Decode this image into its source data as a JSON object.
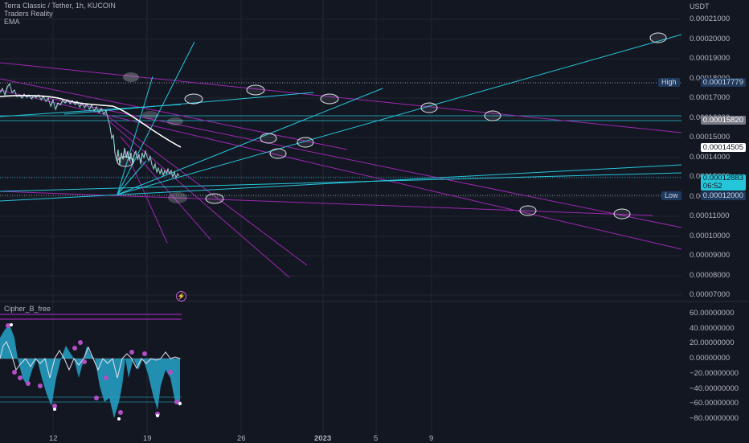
{
  "header": {
    "symbol": "Terra Classic / Tether, 1h, KUCOIN",
    "indicator_1": "Traders Reality",
    "indicator_2": "EMA",
    "unit": "USDT"
  },
  "oscillator": {
    "title": "Cipher_B_free"
  },
  "price_axis": {
    "labels": [
      "0.00021000",
      "0.00020000",
      "0.00019000",
      "0.00018000",
      "0.00017000",
      "0.00016000",
      "0.00015000",
      "0.00014000",
      "0.00013000",
      "0.00012000",
      "0.00011000",
      "0.00010000",
      "0.00009000",
      "0.00008000",
      "0.00007000"
    ]
  },
  "osc_axis": {
    "labels": [
      "60.00000000",
      "40.00000000",
      "20.00000000",
      "0.00000000",
      "−20.00000000",
      "−40.00000000",
      "−60.00000000",
      "−80.00000000"
    ]
  },
  "tags": {
    "high_label": "High",
    "high_value": "0.00017779",
    "level_value": "0.00015820",
    "white_value": "0.00014505",
    "current_value": "0.00012883",
    "countdown": "06:52",
    "low_label": "Low",
    "low_value": "0.00012000"
  },
  "time_axis": {
    "labels": [
      "12",
      "19",
      "26",
      "2023",
      "5",
      "9"
    ]
  },
  "colors": {
    "background": "#131722",
    "cyan": "#26c6da",
    "magenta": "#9c27b0",
    "tag_blue": "#1e3a5f"
  },
  "icons": {
    "flash": "lightning-icon"
  }
}
